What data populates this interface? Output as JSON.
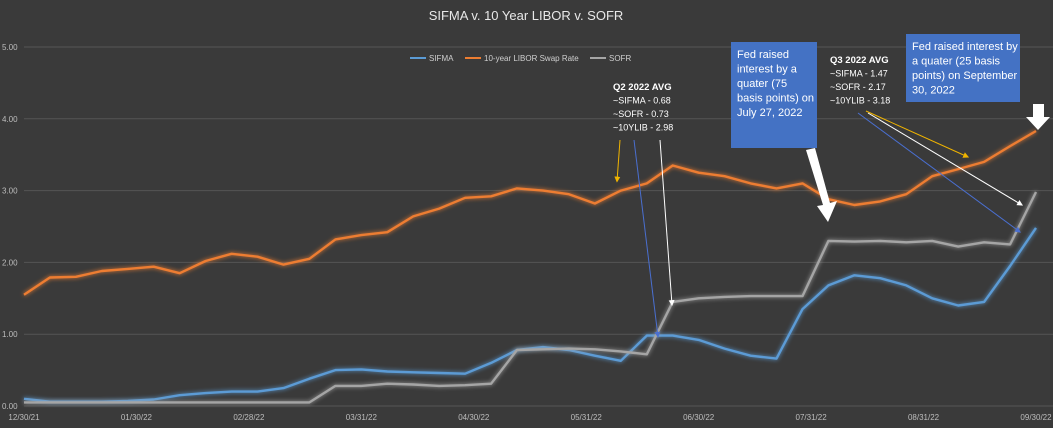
{
  "chart_data": {
    "type": "line",
    "title": "SIFMA v. 10 Year LIBOR v. SOFR",
    "xlabel": "",
    "ylabel": "",
    "ylim": [
      0,
      5
    ],
    "yticks": [
      "0.00",
      "1.00",
      "2.00",
      "3.00",
      "4.00",
      "5.00"
    ],
    "xticks": [
      "12/30/21",
      "01/30/22",
      "02/28/22",
      "03/31/22",
      "04/30/22",
      "05/31/22",
      "06/30/22",
      "07/31/22",
      "08/31/22",
      "09/30/22"
    ],
    "grid": true,
    "legend_position": "top-center",
    "series": [
      {
        "name": "SIFMA",
        "color": "#5b9bd5",
        "values": [
          0.1,
          0.06,
          0.06,
          0.06,
          0.07,
          0.09,
          0.15,
          0.18,
          0.2,
          0.2,
          0.25,
          0.38,
          0.5,
          0.51,
          0.48,
          0.47,
          0.46,
          0.45,
          0.6,
          0.78,
          0.82,
          0.78,
          0.7,
          0.63,
          0.98,
          0.98,
          0.92,
          0.8,
          0.7,
          0.66,
          1.35,
          1.68,
          1.82,
          1.78,
          1.68,
          1.5,
          1.4,
          1.45,
          1.95,
          2.48
        ]
      },
      {
        "name": "10-year LIBOR Swap Rate",
        "color": "#ed7d31",
        "values": [
          1.55,
          1.79,
          1.8,
          1.88,
          1.91,
          1.94,
          1.85,
          2.02,
          2.12,
          2.08,
          1.97,
          2.05,
          2.32,
          2.38,
          2.42,
          2.64,
          2.75,
          2.9,
          2.92,
          3.03,
          3.0,
          2.95,
          2.82,
          3.0,
          3.1,
          3.35,
          3.25,
          3.2,
          3.1,
          3.03,
          3.1,
          2.88,
          2.8,
          2.85,
          2.95,
          3.2,
          3.3,
          3.4,
          3.62,
          3.83
        ]
      },
      {
        "name": "SOFR",
        "color": "#a5a5a5",
        "values": [
          0.05,
          0.05,
          0.05,
          0.05,
          0.05,
          0.05,
          0.05,
          0.05,
          0.05,
          0.05,
          0.05,
          0.05,
          0.28,
          0.28,
          0.31,
          0.3,
          0.28,
          0.29,
          0.31,
          0.78,
          0.79,
          0.8,
          0.79,
          0.76,
          0.72,
          1.45,
          1.5,
          1.52,
          1.53,
          1.53,
          1.53,
          2.3,
          2.29,
          2.3,
          2.28,
          2.3,
          2.22,
          2.28,
          2.25,
          2.98
        ]
      }
    ],
    "annotations": {
      "q2_avg": [
        "Q2 2022 AVG",
        "~SIFMA - 0.68",
        "~SOFR -  0.73",
        "~10YLIB - 2.98"
      ],
      "q3_avg": [
        "Q3 2022 AVG",
        "~SIFMA - 1.47",
        "~SOFR - 2.17",
        "~10YLIB - 3.18"
      ],
      "fed_july": [
        "Fed raised",
        "interest by a",
        "quater (75",
        "basis points) on",
        "July 27, 2022"
      ],
      "fed_sept": [
        "Fed raised interest by",
        "a quater (25 basis",
        "points) on September",
        "30, 2022"
      ]
    }
  }
}
